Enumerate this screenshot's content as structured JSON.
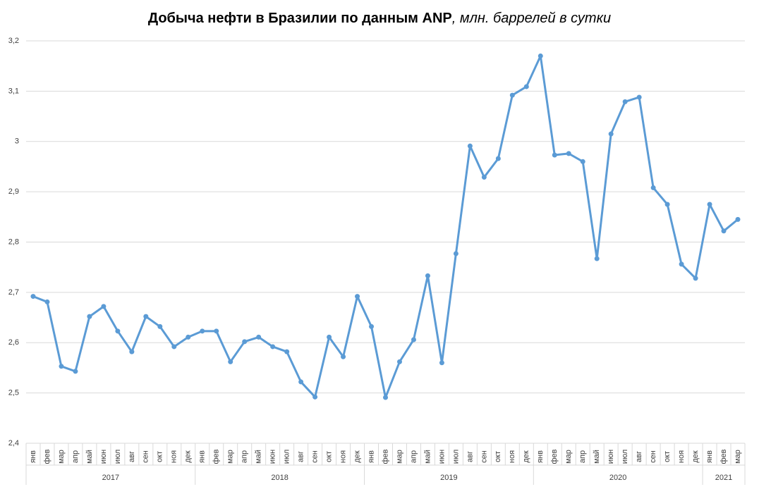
{
  "chart_data": {
    "type": "line",
    "title": "Добыча нефти в Бразилии по данным ANP",
    "title_unit": ", млн. баррелей в сутки",
    "groups": [
      {
        "name": "2017",
        "categories": [
          "янв",
          "фев",
          "мар",
          "апр",
          "май",
          "июн",
          "июл",
          "авг",
          "сен",
          "окт",
          "ноя",
          "дек"
        ]
      },
      {
        "name": "2018",
        "categories": [
          "янв",
          "фев",
          "мар",
          "апр",
          "май",
          "июн",
          "июл",
          "авг",
          "сен",
          "окт",
          "ноя",
          "дек"
        ]
      },
      {
        "name": "2019",
        "categories": [
          "янв",
          "фев",
          "мар",
          "апр",
          "май",
          "июн",
          "июл",
          "авг",
          "сен",
          "окт",
          "ноя",
          "дек"
        ]
      },
      {
        "name": "2020",
        "categories": [
          "янв",
          "фев",
          "мар",
          "апр",
          "май",
          "июн",
          "июл",
          "авг",
          "сен",
          "окт",
          "ноя",
          "дек"
        ]
      },
      {
        "name": "2021",
        "categories": [
          "янв",
          "фев",
          "мар"
        ]
      }
    ],
    "values": [
      2.692,
      2.681,
      2.553,
      2.543,
      2.652,
      2.672,
      2.623,
      2.582,
      2.652,
      2.632,
      2.592,
      2.611,
      2.623,
      2.623,
      2.562,
      2.602,
      2.611,
      2.592,
      2.582,
      2.522,
      2.492,
      2.611,
      2.572,
      2.692,
      2.632,
      2.491,
      2.562,
      2.606,
      2.733,
      2.56,
      2.777,
      2.991,
      2.929,
      2.966,
      3.092,
      3.109,
      3.17,
      2.973,
      2.976,
      2.96,
      2.767,
      3.015,
      3.079,
      3.088,
      2.908,
      2.875,
      2.756,
      2.728,
      2.875,
      2.822,
      2.845
    ],
    "color": "#5b9bd5",
    "ylim": [
      2.4,
      3.2
    ],
    "yticks": [
      {
        "value": 2.4,
        "label": "2,4"
      },
      {
        "value": 2.5,
        "label": "2,5"
      },
      {
        "value": 2.6,
        "label": "2,6"
      },
      {
        "value": 2.7,
        "label": "2,7"
      },
      {
        "value": 2.8,
        "label": "2,8"
      },
      {
        "value": 2.9,
        "label": "2,9"
      },
      3,
      {
        "value": 3.1,
        "label": "3,1"
      },
      {
        "value": 3.2,
        "label": "3,2"
      }
    ],
    "grid": true
  }
}
